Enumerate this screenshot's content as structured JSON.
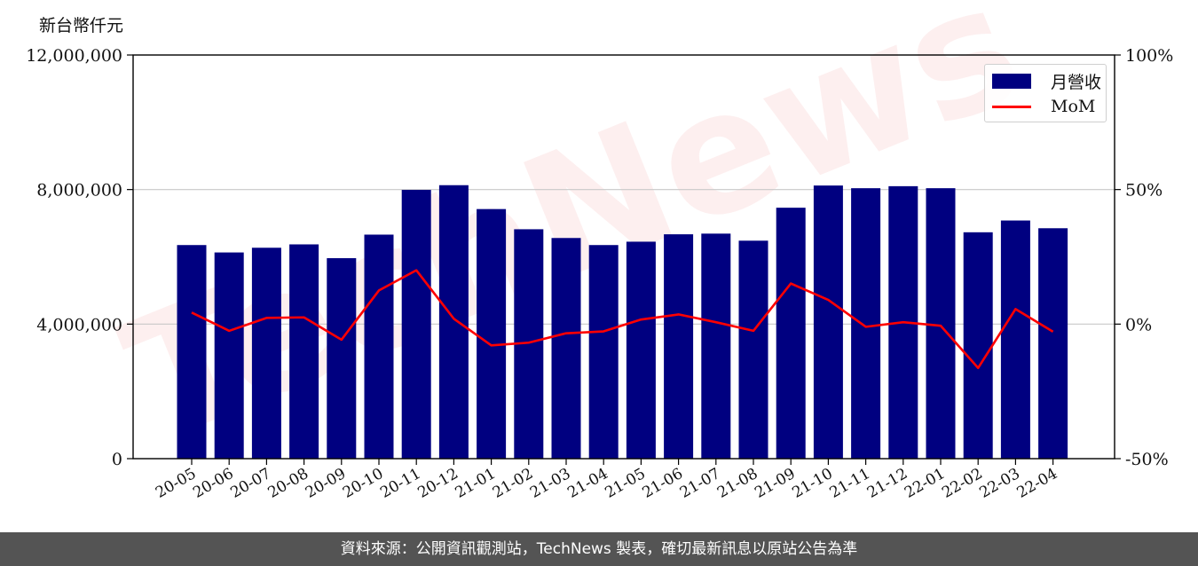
{
  "unit_label": "新台幣仟元",
  "watermark": "TechNews",
  "footer_text": "資料來源：公開資訊觀測站，TechNews 製表，確切最新訊息以原站公告為準",
  "colors": {
    "bar": "#000080",
    "line": "#ff0000",
    "footer_bg": "#545454"
  },
  "chart_data": {
    "type": "bar",
    "categories": [
      "20-05",
      "20-06",
      "20-07",
      "20-08",
      "20-09",
      "20-10",
      "20-11",
      "20-12",
      "21-01",
      "21-02",
      "21-03",
      "21-04",
      "21-05",
      "21-06",
      "21-07",
      "21-08",
      "21-09",
      "21-10",
      "21-11",
      "21-12",
      "22-01",
      "22-02",
      "22-03",
      "22-04"
    ],
    "series": [
      {
        "name": "月營收",
        "type": "bar",
        "axis": "left",
        "values": [
          6350000,
          6130000,
          6270000,
          6370000,
          5960000,
          6660000,
          7990000,
          8130000,
          7420000,
          6820000,
          6560000,
          6350000,
          6450000,
          6670000,
          6690000,
          6480000,
          7460000,
          8120000,
          8040000,
          8100000,
          8040000,
          6730000,
          7080000,
          6850000
        ]
      },
      {
        "name": "MoM",
        "type": "line",
        "axis": "right",
        "values": [
          4.3,
          -2.5,
          2.3,
          2.5,
          -5.8,
          12.5,
          20.0,
          2.0,
          -7.9,
          -6.9,
          -3.4,
          -2.7,
          1.7,
          3.6,
          0.7,
          -2.5,
          15.1,
          9.0,
          -1.0,
          0.7,
          -0.6,
          -16.3,
          5.6,
          -2.8
        ]
      }
    ],
    "yticks_left": [
      "0",
      "4,000,000",
      "8,000,000",
      "12,000,000"
    ],
    "yticks_right": [
      "-50%",
      "0%",
      "50%",
      "100%"
    ],
    "ylim_left": [
      0,
      12000000
    ],
    "ylim_right": [
      -50,
      100
    ],
    "grid": "horizontal",
    "legend_position": "top-right"
  }
}
